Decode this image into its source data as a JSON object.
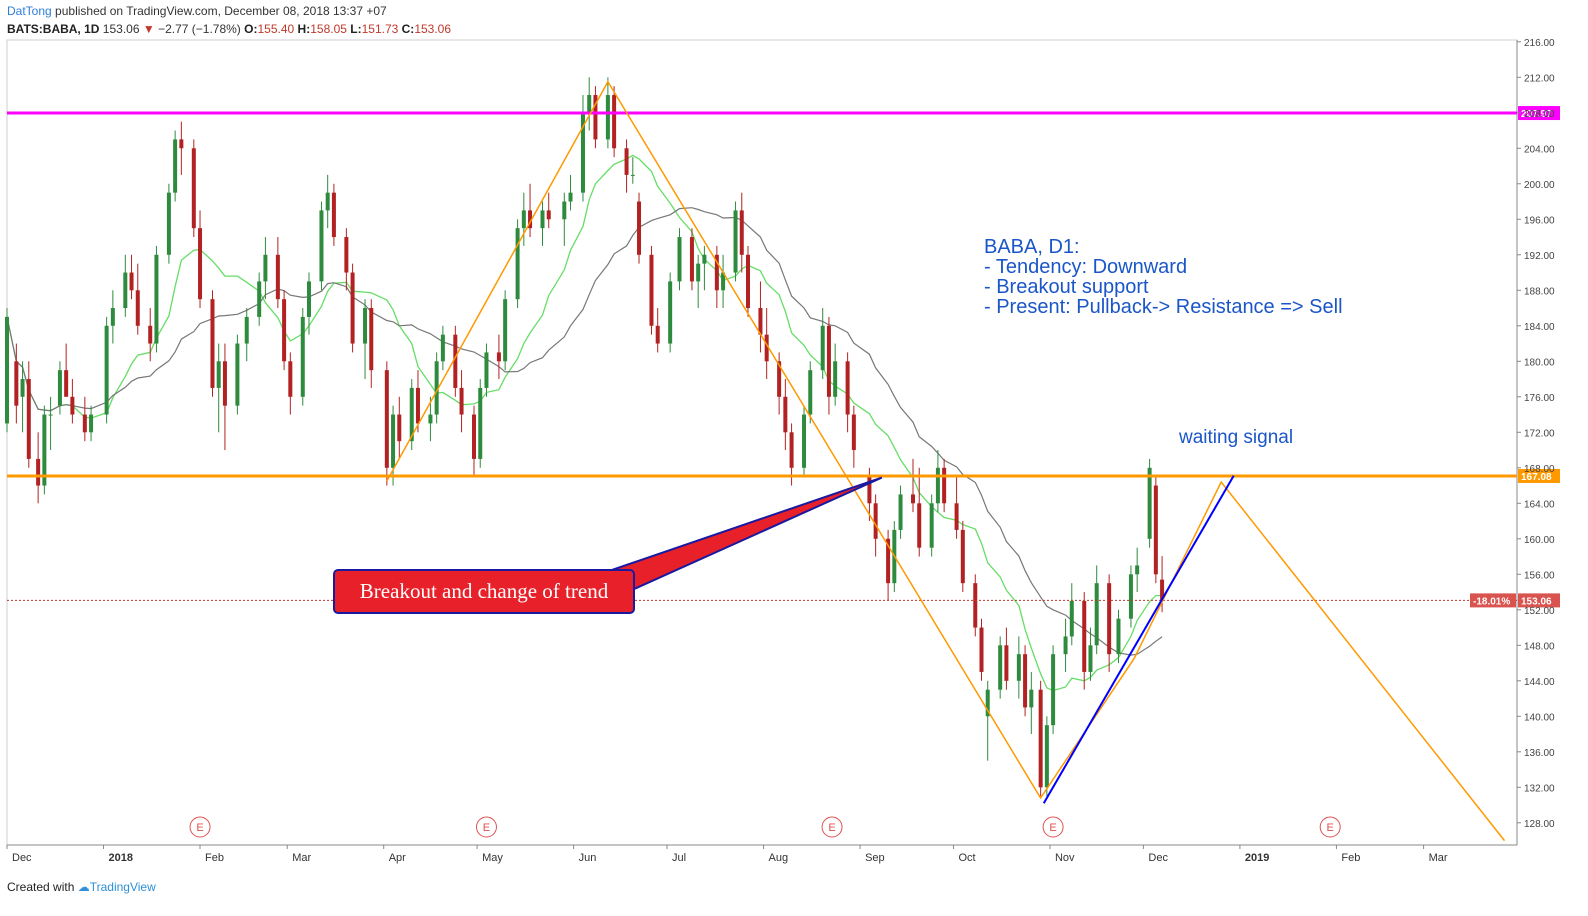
{
  "header": {
    "author": "DatTong",
    "published": "published on TradingView.com, December 08, 2018 13:37 +07",
    "symbol": "BATS:BABA, 1D",
    "last": "153.06",
    "change": "−2.77 (−1.78%)",
    "open_label": "O:",
    "open": "155.40",
    "high_label": "H:",
    "high": "158.05",
    "low_label": "L:",
    "low": "151.73",
    "close_label": "C:",
    "close": "153.06"
  },
  "footer": {
    "created": "Created with",
    "brand": "TradingView"
  },
  "annotations": {
    "analysis": [
      "BABA, D1:",
      "- Tendency: Downward",
      "- Breakout support",
      "- Present: Pullback-> Resistance => Sell"
    ],
    "waiting": "waiting signal",
    "breakout_label": "Breakout and change of trend",
    "earnings_marker": "E"
  },
  "colors": {
    "up": "#2e8b3e",
    "down": "#b22222",
    "resistance": "#ff00ff",
    "support": "#ff9900",
    "zigzag": "#ff9900",
    "trendline": "#0000ff",
    "ma_fast": "#66dd66",
    "ma_slow": "#777777",
    "annotation_text": "#1a56c8",
    "label_bg": "#e8202a",
    "label_border": "#1a1aa0"
  },
  "chart_data": {
    "type": "candlestick",
    "y_ticks": [
      "216.00",
      "212.00",
      "208.00",
      "204.00",
      "200.00",
      "196.00",
      "192.00",
      "188.00",
      "184.00",
      "180.00",
      "176.00",
      "172.00",
      "168.00",
      "164.00",
      "160.00",
      "156.00",
      "152.00",
      "148.00",
      "144.00",
      "140.00",
      "136.00",
      "132.00",
      "128.00"
    ],
    "ylim": [
      125.5,
      216.2
    ],
    "x_ticks": [
      "Dec",
      "2018",
      "Feb",
      "Mar",
      "Apr",
      "May",
      "Jun",
      "Jul",
      "Aug",
      "Sep",
      "Oct",
      "Nov",
      "Dec",
      "2019",
      "Feb",
      "Mar"
    ],
    "x_axis_start": "2017-12-01",
    "x_axis_end": "2019-03-31",
    "levels": [
      {
        "name": "resistance",
        "value": 207.97,
        "label": "207.97"
      },
      {
        "name": "support",
        "value": 167.08,
        "label": "167.08"
      },
      {
        "name": "last",
        "value": 153.06,
        "label": "153.06",
        "pct": "-18.01%"
      }
    ],
    "earnings_dates": [
      "2018-02-01",
      "2018-05-04",
      "2018-08-23",
      "2018-11-02",
      "2019-01-30"
    ],
    "zigzag": [
      {
        "date": "2018-04-02",
        "price": 166.5
      },
      {
        "date": "2018-06-12",
        "price": 211.5
      },
      {
        "date": "2018-10-29",
        "price": 130.8
      },
      {
        "date": "2018-11-28",
        "price": 146.5
      },
      {
        "date": "2018-12-26",
        "price": 166.4
      },
      {
        "date": "2019-03-27",
        "price": 126.0
      }
    ],
    "trendline": [
      {
        "date": "2018-10-30",
        "price": 130.2
      },
      {
        "date": "2018-12-30",
        "price": 167.1
      }
    ],
    "breakout_pointer_target": {
      "date": "2018-09-08",
      "price": 166.9
    },
    "candles": [
      {
        "d": "2017-12-01",
        "o": 173,
        "h": 186,
        "l": 172,
        "c": 185
      },
      {
        "d": "2017-12-04",
        "o": 180,
        "h": 182,
        "l": 173,
        "c": 175
      },
      {
        "d": "2017-12-06",
        "o": 176,
        "h": 180,
        "l": 172,
        "c": 178
      },
      {
        "d": "2017-12-08",
        "o": 178,
        "h": 180,
        "l": 168,
        "c": 169
      },
      {
        "d": "2017-12-11",
        "o": 169,
        "h": 172,
        "l": 164,
        "c": 166
      },
      {
        "d": "2017-12-13",
        "o": 166,
        "h": 175,
        "l": 165,
        "c": 174
      },
      {
        "d": "2017-12-15",
        "o": 174,
        "h": 176,
        "l": 170,
        "c": 174
      },
      {
        "d": "2017-12-18",
        "o": 175,
        "h": 180,
        "l": 174,
        "c": 179
      },
      {
        "d": "2017-12-20",
        "o": 179,
        "h": 182,
        "l": 176,
        "c": 176
      },
      {
        "d": "2017-12-22",
        "o": 176,
        "h": 178,
        "l": 173,
        "c": 174
      },
      {
        "d": "2017-12-26",
        "o": 174,
        "h": 176,
        "l": 171,
        "c": 172
      },
      {
        "d": "2017-12-28",
        "o": 172,
        "h": 175,
        "l": 171,
        "c": 174
      },
      {
        "d": "2018-01-02",
        "o": 174,
        "h": 185,
        "l": 173,
        "c": 184
      },
      {
        "d": "2018-01-04",
        "o": 184,
        "h": 188,
        "l": 182,
        "c": 186
      },
      {
        "d": "2018-01-08",
        "o": 186,
        "h": 192,
        "l": 185,
        "c": 190
      },
      {
        "d": "2018-01-10",
        "o": 190,
        "h": 192,
        "l": 187,
        "c": 188
      },
      {
        "d": "2018-01-12",
        "o": 188,
        "h": 191,
        "l": 183,
        "c": 184
      },
      {
        "d": "2018-01-16",
        "o": 184,
        "h": 186,
        "l": 180,
        "c": 182
      },
      {
        "d": "2018-01-18",
        "o": 182,
        "h": 193,
        "l": 181,
        "c": 192
      },
      {
        "d": "2018-01-22",
        "o": 192,
        "h": 200,
        "l": 191,
        "c": 199
      },
      {
        "d": "2018-01-24",
        "o": 199,
        "h": 206,
        "l": 198,
        "c": 205
      },
      {
        "d": "2018-01-26",
        "o": 205,
        "h": 207,
        "l": 201,
        "c": 204
      },
      {
        "d": "2018-01-30",
        "o": 204,
        "h": 205,
        "l": 194,
        "c": 195
      },
      {
        "d": "2018-02-01",
        "o": 195,
        "h": 197,
        "l": 186,
        "c": 187
      },
      {
        "d": "2018-02-05",
        "o": 187,
        "h": 188,
        "l": 176,
        "c": 177
      },
      {
        "d": "2018-02-07",
        "o": 177,
        "h": 182,
        "l": 172,
        "c": 180
      },
      {
        "d": "2018-02-09",
        "o": 180,
        "h": 182,
        "l": 170,
        "c": 175
      },
      {
        "d": "2018-02-13",
        "o": 175,
        "h": 183,
        "l": 174,
        "c": 182
      },
      {
        "d": "2018-02-16",
        "o": 182,
        "h": 186,
        "l": 180,
        "c": 185
      },
      {
        "d": "2018-02-20",
        "o": 185,
        "h": 190,
        "l": 184,
        "c": 189
      },
      {
        "d": "2018-02-22",
        "o": 189,
        "h": 194,
        "l": 187,
        "c": 192
      },
      {
        "d": "2018-02-26",
        "o": 192,
        "h": 194,
        "l": 186,
        "c": 187
      },
      {
        "d": "2018-02-28",
        "o": 187,
        "h": 188,
        "l": 179,
        "c": 180
      },
      {
        "d": "2018-03-02",
        "o": 180,
        "h": 181,
        "l": 174,
        "c": 176
      },
      {
        "d": "2018-03-06",
        "o": 176,
        "h": 186,
        "l": 175,
        "c": 185
      },
      {
        "d": "2018-03-08",
        "o": 185,
        "h": 190,
        "l": 183,
        "c": 189
      },
      {
        "d": "2018-03-12",
        "o": 189,
        "h": 198,
        "l": 188,
        "c": 197
      },
      {
        "d": "2018-03-14",
        "o": 197,
        "h": 201,
        "l": 195,
        "c": 199
      },
      {
        "d": "2018-03-16",
        "o": 199,
        "h": 200,
        "l": 193,
        "c": 194
      },
      {
        "d": "2018-03-20",
        "o": 194,
        "h": 195,
        "l": 188,
        "c": 190
      },
      {
        "d": "2018-03-22",
        "o": 190,
        "h": 191,
        "l": 181,
        "c": 182
      },
      {
        "d": "2018-03-26",
        "o": 182,
        "h": 187,
        "l": 178,
        "c": 186
      },
      {
        "d": "2018-03-28",
        "o": 186,
        "h": 187,
        "l": 177,
        "c": 179
      },
      {
        "d": "2018-04-02",
        "o": 179,
        "h": 180,
        "l": 166,
        "c": 168
      },
      {
        "d": "2018-04-04",
        "o": 168,
        "h": 175,
        "l": 166,
        "c": 174
      },
      {
        "d": "2018-04-06",
        "o": 174,
        "h": 176,
        "l": 169,
        "c": 171
      },
      {
        "d": "2018-04-10",
        "o": 171,
        "h": 178,
        "l": 170,
        "c": 177
      },
      {
        "d": "2018-04-12",
        "o": 177,
        "h": 179,
        "l": 172,
        "c": 173
      },
      {
        "d": "2018-04-16",
        "o": 173,
        "h": 176,
        "l": 171,
        "c": 174
      },
      {
        "d": "2018-04-18",
        "o": 174,
        "h": 181,
        "l": 173,
        "c": 180
      },
      {
        "d": "2018-04-20",
        "o": 180,
        "h": 184,
        "l": 179,
        "c": 183
      },
      {
        "d": "2018-04-24",
        "o": 183,
        "h": 184,
        "l": 176,
        "c": 177
      },
      {
        "d": "2018-04-26",
        "o": 177,
        "h": 179,
        "l": 172,
        "c": 174
      },
      {
        "d": "2018-04-30",
        "o": 174,
        "h": 175,
        "l": 167,
        "c": 169
      },
      {
        "d": "2018-05-02",
        "o": 169,
        "h": 178,
        "l": 168,
        "c": 177
      },
      {
        "d": "2018-05-04",
        "o": 177,
        "h": 182,
        "l": 176,
        "c": 181
      },
      {
        "d": "2018-05-08",
        "o": 181,
        "h": 183,
        "l": 178,
        "c": 180
      },
      {
        "d": "2018-05-10",
        "o": 180,
        "h": 188,
        "l": 179,
        "c": 187
      },
      {
        "d": "2018-05-14",
        "o": 187,
        "h": 196,
        "l": 186,
        "c": 195
      },
      {
        "d": "2018-05-16",
        "o": 195,
        "h": 199,
        "l": 193,
        "c": 197
      },
      {
        "d": "2018-05-18",
        "o": 197,
        "h": 200,
        "l": 194,
        "c": 195
      },
      {
        "d": "2018-05-22",
        "o": 195,
        "h": 198,
        "l": 193,
        "c": 197
      },
      {
        "d": "2018-05-24",
        "o": 197,
        "h": 199,
        "l": 195,
        "c": 196
      },
      {
        "d": "2018-05-29",
        "o": 196,
        "h": 199,
        "l": 193,
        "c": 198
      },
      {
        "d": "2018-05-31",
        "o": 198,
        "h": 201,
        "l": 197,
        "c": 199
      },
      {
        "d": "2018-06-04",
        "o": 199,
        "h": 210,
        "l": 198,
        "c": 208
      },
      {
        "d": "2018-06-06",
        "o": 208,
        "h": 212,
        "l": 206,
        "c": 210
      },
      {
        "d": "2018-06-08",
        "o": 210,
        "h": 211,
        "l": 204,
        "c": 205
      },
      {
        "d": "2018-06-12",
        "o": 205,
        "h": 212,
        "l": 204,
        "c": 210
      },
      {
        "d": "2018-06-14",
        "o": 210,
        "h": 211,
        "l": 203,
        "c": 204
      },
      {
        "d": "2018-06-18",
        "o": 204,
        "h": 205,
        "l": 199,
        "c": 201
      },
      {
        "d": "2018-06-20",
        "o": 201,
        "h": 203,
        "l": 200,
        "c": 201
      },
      {
        "d": "2018-06-22",
        "o": 198,
        "h": 199,
        "l": 191,
        "c": 192
      },
      {
        "d": "2018-06-26",
        "o": 192,
        "h": 193,
        "l": 183,
        "c": 184
      },
      {
        "d": "2018-06-28",
        "o": 184,
        "h": 186,
        "l": 181,
        "c": 182
      },
      {
        "d": "2018-07-02",
        "o": 182,
        "h": 190,
        "l": 181,
        "c": 189
      },
      {
        "d": "2018-07-05",
        "o": 189,
        "h": 195,
        "l": 188,
        "c": 194
      },
      {
        "d": "2018-07-09",
        "o": 194,
        "h": 195,
        "l": 188,
        "c": 189
      },
      {
        "d": "2018-07-11",
        "o": 189,
        "h": 192,
        "l": 186,
        "c": 191
      },
      {
        "d": "2018-07-13",
        "o": 191,
        "h": 193,
        "l": 188,
        "c": 192
      },
      {
        "d": "2018-07-17",
        "o": 192,
        "h": 193,
        "l": 186,
        "c": 188
      },
      {
        "d": "2018-07-19",
        "o": 188,
        "h": 192,
        "l": 186,
        "c": 190
      },
      {
        "d": "2018-07-23",
        "o": 190,
        "h": 198,
        "l": 189,
        "c": 197
      },
      {
        "d": "2018-07-25",
        "o": 197,
        "h": 199,
        "l": 190,
        "c": 192
      },
      {
        "d": "2018-07-27",
        "o": 192,
        "h": 193,
        "l": 185,
        "c": 186
      },
      {
        "d": "2018-07-31",
        "o": 186,
        "h": 189,
        "l": 181,
        "c": 183
      },
      {
        "d": "2018-08-02",
        "o": 183,
        "h": 186,
        "l": 178,
        "c": 180
      },
      {
        "d": "2018-08-06",
        "o": 180,
        "h": 181,
        "l": 174,
        "c": 176
      },
      {
        "d": "2018-08-08",
        "o": 176,
        "h": 178,
        "l": 170,
        "c": 172
      },
      {
        "d": "2018-08-10",
        "o": 172,
        "h": 173,
        "l": 166,
        "c": 168
      },
      {
        "d": "2018-08-14",
        "o": 168,
        "h": 175,
        "l": 167,
        "c": 174
      },
      {
        "d": "2018-08-16",
        "o": 174,
        "h": 180,
        "l": 173,
        "c": 179
      },
      {
        "d": "2018-08-20",
        "o": 179,
        "h": 186,
        "l": 178,
        "c": 184
      },
      {
        "d": "2018-08-22",
        "o": 184,
        "h": 185,
        "l": 174,
        "c": 176
      },
      {
        "d": "2018-08-24",
        "o": 176,
        "h": 182,
        "l": 175,
        "c": 180
      },
      {
        "d": "2018-08-28",
        "o": 180,
        "h": 181,
        "l": 172,
        "c": 174
      },
      {
        "d": "2018-08-30",
        "o": 174,
        "h": 175,
        "l": 168,
        "c": 170
      },
      {
        "d": "2018-09-04",
        "o": 167,
        "h": 168,
        "l": 162,
        "c": 164
      },
      {
        "d": "2018-09-06",
        "o": 164,
        "h": 165,
        "l": 158,
        "c": 160
      },
      {
        "d": "2018-09-10",
        "o": 160,
        "h": 161,
        "l": 153,
        "c": 155
      },
      {
        "d": "2018-09-12",
        "o": 155,
        "h": 162,
        "l": 154,
        "c": 161
      },
      {
        "d": "2018-09-14",
        "o": 161,
        "h": 166,
        "l": 160,
        "c": 165
      },
      {
        "d": "2018-09-18",
        "o": 165,
        "h": 169,
        "l": 163,
        "c": 164
      },
      {
        "d": "2018-09-20",
        "o": 164,
        "h": 168,
        "l": 158,
        "c": 159
      },
      {
        "d": "2018-09-24",
        "o": 159,
        "h": 165,
        "l": 158,
        "c": 164
      },
      {
        "d": "2018-09-26",
        "o": 164,
        "h": 170,
        "l": 163,
        "c": 168
      },
      {
        "d": "2018-09-28",
        "o": 168,
        "h": 169,
        "l": 163,
        "c": 164
      },
      {
        "d": "2018-10-02",
        "o": 164,
        "h": 167,
        "l": 160,
        "c": 161
      },
      {
        "d": "2018-10-04",
        "o": 161,
        "h": 162,
        "l": 154,
        "c": 155
      },
      {
        "d": "2018-10-08",
        "o": 155,
        "h": 156,
        "l": 149,
        "c": 150
      },
      {
        "d": "2018-10-10",
        "o": 150,
        "h": 151,
        "l": 144,
        "c": 145
      },
      {
        "d": "2018-10-12",
        "o": 140,
        "h": 144,
        "l": 135,
        "c": 143
      },
      {
        "d": "2018-10-16",
        "o": 143,
        "h": 149,
        "l": 142,
        "c": 148
      },
      {
        "d": "2018-10-18",
        "o": 148,
        "h": 150,
        "l": 143,
        "c": 144
      },
      {
        "d": "2018-10-22",
        "o": 144,
        "h": 149,
        "l": 142,
        "c": 147
      },
      {
        "d": "2018-10-24",
        "o": 147,
        "h": 148,
        "l": 140,
        "c": 141
      },
      {
        "d": "2018-10-26",
        "o": 141,
        "h": 145,
        "l": 138,
        "c": 143
      },
      {
        "d": "2018-10-29",
        "o": 143,
        "h": 144,
        "l": 131,
        "c": 132
      },
      {
        "d": "2018-10-31",
        "o": 132,
        "h": 140,
        "l": 131,
        "c": 139
      },
      {
        "d": "2018-11-02",
        "o": 139,
        "h": 148,
        "l": 138,
        "c": 147
      },
      {
        "d": "2018-11-06",
        "o": 147,
        "h": 151,
        "l": 145,
        "c": 149
      },
      {
        "d": "2018-11-08",
        "o": 149,
        "h": 155,
        "l": 148,
        "c": 153
      },
      {
        "d": "2018-11-12",
        "o": 153,
        "h": 154,
        "l": 143,
        "c": 145
      },
      {
        "d": "2018-11-14",
        "o": 145,
        "h": 150,
        "l": 144,
        "c": 148
      },
      {
        "d": "2018-11-16",
        "o": 148,
        "h": 157,
        "l": 147,
        "c": 155
      },
      {
        "d": "2018-11-20",
        "o": 155,
        "h": 156,
        "l": 145,
        "c": 147
      },
      {
        "d": "2018-11-23",
        "o": 147,
        "h": 152,
        "l": 146,
        "c": 151
      },
      {
        "d": "2018-11-27",
        "o": 151,
        "h": 157,
        "l": 150,
        "c": 156
      },
      {
        "d": "2018-11-29",
        "o": 156,
        "h": 159,
        "l": 154,
        "c": 157
      },
      {
        "d": "2018-12-03",
        "o": 160,
        "h": 169,
        "l": 159,
        "c": 168
      },
      {
        "d": "2018-12-05",
        "o": 166,
        "h": 167,
        "l": 155,
        "c": 156
      },
      {
        "d": "2018-12-07",
        "o": 155.4,
        "h": 158.05,
        "l": 151.73,
        "c": 153.06
      }
    ]
  }
}
